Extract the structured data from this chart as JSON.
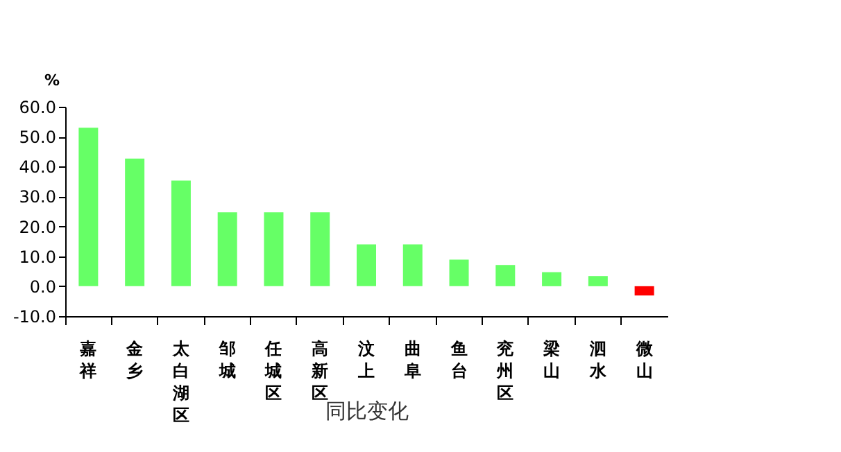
{
  "chart_data": {
    "type": "bar",
    "xlabel": "同比变化",
    "ylabel": "%",
    "categories": [
      "嘉祥",
      "金乡",
      "太白湖区",
      "邹城",
      "任城区",
      "高新区",
      "汶上",
      "曲阜",
      "鱼台",
      "兖州区",
      "梁山",
      "泗水",
      "微山"
    ],
    "values": [
      53.0,
      42.7,
      35.3,
      24.7,
      24.7,
      24.7,
      14.0,
      14.0,
      8.9,
      7.1,
      4.7,
      3.4,
      -3.1
    ],
    "colors": [
      "#66ff66",
      "#66ff66",
      "#66ff66",
      "#66ff66",
      "#66ff66",
      "#66ff66",
      "#66ff66",
      "#66ff66",
      "#66ff66",
      "#66ff66",
      "#66ff66",
      "#66ff66",
      "#ff0000"
    ],
    "ylim": [
      -10,
      60
    ],
    "yticks": [
      {
        "value": 60,
        "label": "60.0"
      },
      {
        "value": 50,
        "label": "50.0"
      },
      {
        "value": 40,
        "label": "40.0"
      },
      {
        "value": 30,
        "label": "30.0"
      },
      {
        "value": 20,
        "label": "20.0"
      },
      {
        "value": 10,
        "label": "10.0"
      },
      {
        "value": 0,
        "label": "0.0"
      },
      {
        "value": -10,
        "label": "-10.0"
      }
    ],
    "grid": false
  }
}
